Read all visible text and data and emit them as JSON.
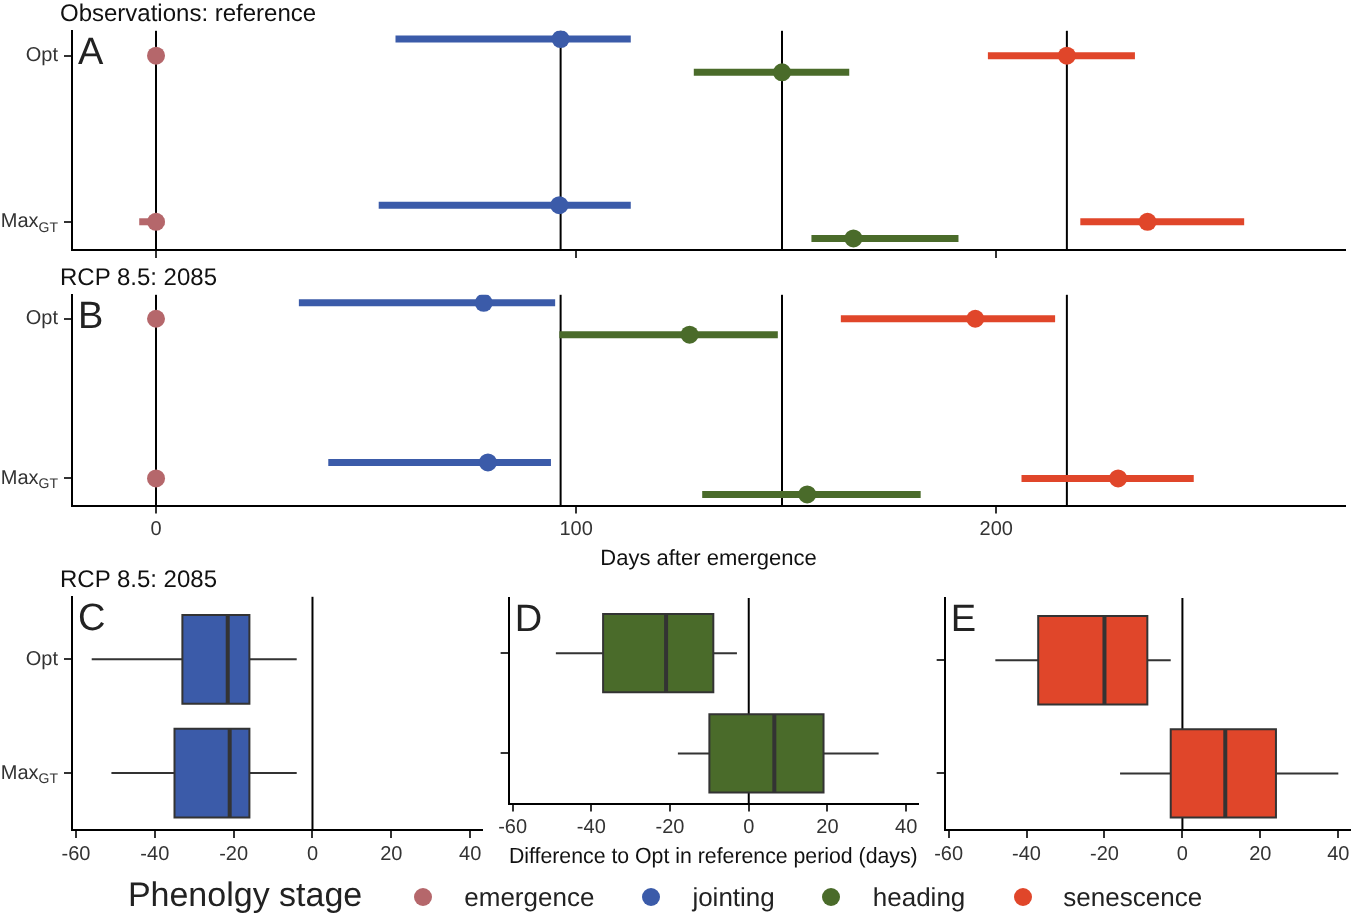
{
  "chart_data": [
    {
      "type": "scatter",
      "orientation": "horizontal",
      "title": "Observations: reference",
      "annotations": [
        "A"
      ],
      "categories": [
        "Opt",
        "Max$_{GT}$"
      ],
      "xlim": [
        -20,
        283
      ],
      "xticks": [
        0,
        100,
        200
      ],
      "tick_labels": "y",
      "legend": "bottom",
      "legend_title": "Phenolgy stage",
      "ref_lines": [
        {
          "axis": "x",
          "value": 0
        },
        {
          "axis": "x",
          "value": 96.3
        },
        {
          "axis": "x",
          "value": 149
        },
        {
          "axis": "x",
          "value": 216.8
        }
      ],
      "series": [
        {
          "name": "emergence",
          "color": "#b5676b",
          "values": [
            0,
            0
          ],
          "errors": [
            null,
            [
              -4,
              2
            ]
          ]
        },
        {
          "name": "jointing",
          "color": "#3b5ba9",
          "values": [
            96.3,
            96
          ],
          "errors": [
            [
              57,
              113
            ],
            [
              53,
              113
            ]
          ]
        },
        {
          "name": "heading",
          "color": "#4a6b2a",
          "values": [
            149,
            166
          ],
          "errors": [
            [
              128,
              165
            ],
            [
              156,
              191
            ]
          ]
        },
        {
          "name": "senescence",
          "color": "#e0462a",
          "values": [
            216.8,
            236
          ],
          "errors": [
            [
              198,
              233
            ],
            [
              220,
              259
            ]
          ]
        }
      ]
    },
    {
      "type": "scatter",
      "orientation": "horizontal",
      "title": "RCP 8.5: 2085",
      "annotations": [
        "B"
      ],
      "xlabel": "Days after emergence",
      "categories": [
        "Opt",
        "Max$_{GT}$"
      ],
      "xlim": [
        -20,
        283
      ],
      "xticks": [
        0,
        100,
        200
      ],
      "ref_lines": [
        {
          "axis": "x",
          "value": 0
        },
        {
          "axis": "x",
          "value": 96.3
        },
        {
          "axis": "x",
          "value": 149
        },
        {
          "axis": "x",
          "value": 216.8
        }
      ],
      "series": [
        {
          "color": "#b5676b",
          "values": [
            0,
            0
          ],
          "errors": [
            null,
            null
          ]
        },
        {
          "color": "#3b5ba9",
          "values": [
            78,
            79
          ],
          "errors": [
            [
              34,
              95
            ],
            [
              41,
              94
            ]
          ]
        },
        {
          "color": "#4a6b2a",
          "values": [
            127,
            155
          ],
          "errors": [
            [
              96,
              148
            ],
            [
              130,
              182
            ]
          ]
        },
        {
          "color": "#e0462a",
          "values": [
            195,
            229
          ],
          "errors": [
            [
              163,
              214
            ],
            [
              206,
              247
            ]
          ]
        }
      ]
    },
    {
      "type": "box",
      "orientation": "horizontal",
      "title": "RCP 8.5: 2085",
      "annotations": [
        "C"
      ],
      "categories": [
        "Opt",
        "Max$_{GT}$"
      ],
      "xlim": [
        -61,
        43
      ],
      "xticks": [
        -60,
        -40,
        -20,
        0,
        20,
        40
      ],
      "ref_lines": [
        {
          "axis": "x",
          "value": 0
        }
      ],
      "series": [
        {
          "color": "#3b5ba9",
          "boxes": [
            {
              "low": -56,
              "q1": -33,
              "median": -21.5,
              "q3": -16,
              "high": -4
            },
            {
              "low": -51,
              "q1": -35,
              "median": -21,
              "q3": -16,
              "high": -4
            }
          ]
        }
      ]
    },
    {
      "type": "box",
      "orientation": "horizontal",
      "annotations": [
        "D"
      ],
      "xlabel": "Difference to Opt in reference period (days)",
      "categories": [
        null,
        null
      ],
      "xlim": [
        -61,
        43
      ],
      "xticks": [
        -60,
        -40,
        -20,
        0,
        20,
        40
      ],
      "tick_labels": "x",
      "ref_lines": [
        {
          "axis": "x",
          "value": 0
        }
      ],
      "series": [
        {
          "color": "#4a6b2a",
          "boxes": [
            {
              "low": -49,
              "q1": -37,
              "median": -21,
              "q3": -9,
              "high": -3
            },
            {
              "low": -18,
              "q1": -10,
              "median": 6.5,
              "q3": 19,
              "high": 33
            }
          ]
        }
      ]
    },
    {
      "type": "box",
      "orientation": "horizontal",
      "annotations": [
        "E"
      ],
      "categories": [
        null,
        null
      ],
      "xlim": [
        -61,
        43
      ],
      "xticks": [
        -60,
        -40,
        -20,
        0,
        20,
        40
      ],
      "tick_labels": "x",
      "ref_lines": [
        {
          "axis": "x",
          "value": 0
        }
      ],
      "series": [
        {
          "color": "#e0462a",
          "boxes": [
            {
              "low": -48,
              "q1": -37,
              "median": -20,
              "q3": -9,
              "high": -3
            },
            {
              "low": -16,
              "q1": -3,
              "median": 11,
              "q3": 24,
              "high": 40
            }
          ]
        }
      ]
    }
  ]
}
